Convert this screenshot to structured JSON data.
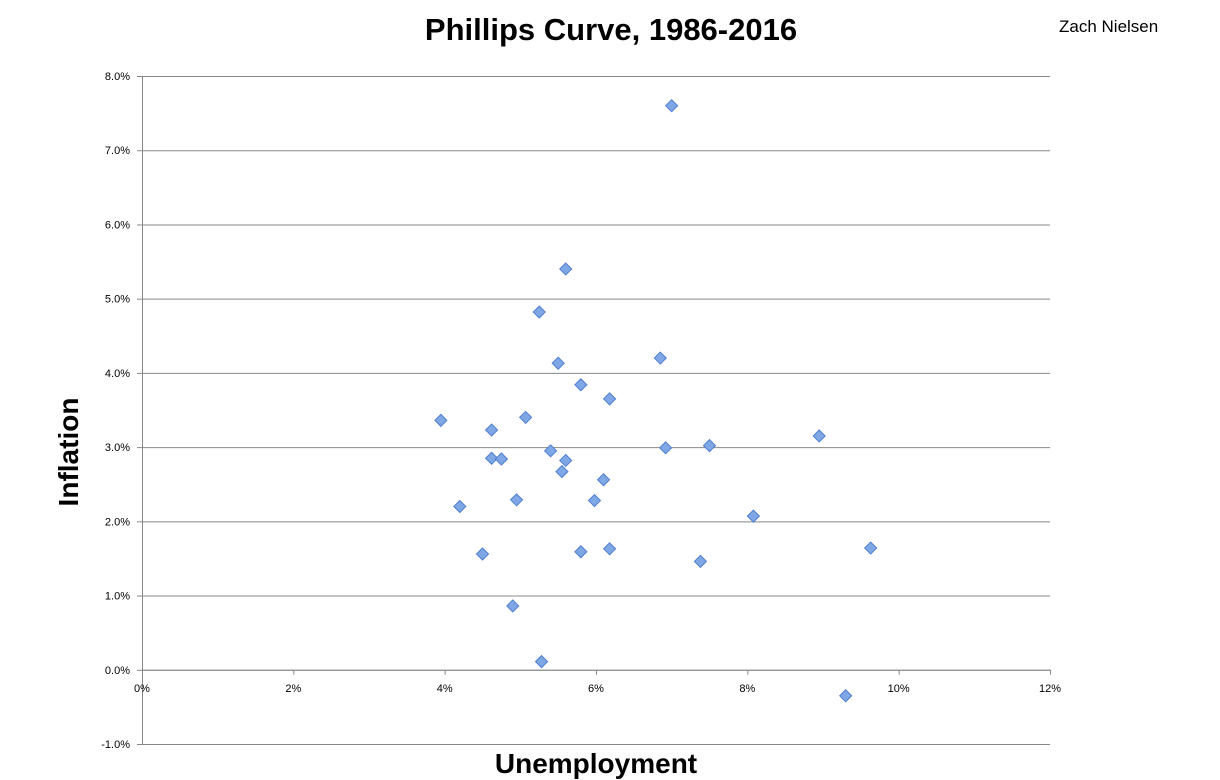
{
  "chart_data": {
    "type": "scatter",
    "title": "Phillips Curve, 1986-2016",
    "author": "Zach Nielsen",
    "xlabel": "Unemployment",
    "ylabel": "Inflation",
    "xlim": [
      0,
      12
    ],
    "ylim": [
      -1,
      8
    ],
    "x_ticks": [
      0,
      2,
      4,
      6,
      8,
      10,
      12
    ],
    "x_tick_labels": [
      "0%",
      "2%",
      "4%",
      "6%",
      "8%",
      "10%",
      "12%"
    ],
    "y_ticks": [
      -1,
      0,
      1,
      2,
      3,
      4,
      5,
      6,
      7,
      8
    ],
    "y_tick_labels": [
      "-1.0%",
      "0.0%",
      "1.0%",
      "2.0%",
      "3.0%",
      "4.0%",
      "5.0%",
      "6.0%",
      "7.0%",
      "8.0%"
    ],
    "grid": "horizontal",
    "legend": "none",
    "marker": "diamond",
    "marker_color": "#7fa7e6",
    "marker_edge_color": "#4f7fcf",
    "points": [
      {
        "x": 7.0,
        "y": 7.6
      },
      {
        "x": 5.6,
        "y": 5.4
      },
      {
        "x": 5.25,
        "y": 4.82
      },
      {
        "x": 5.5,
        "y": 4.13
      },
      {
        "x": 6.85,
        "y": 4.2
      },
      {
        "x": 5.8,
        "y": 3.84
      },
      {
        "x": 6.18,
        "y": 3.65
      },
      {
        "x": 3.95,
        "y": 3.36
      },
      {
        "x": 5.07,
        "y": 3.4
      },
      {
        "x": 4.62,
        "y": 3.23
      },
      {
        "x": 8.95,
        "y": 3.15
      },
      {
        "x": 7.5,
        "y": 3.02
      },
      {
        "x": 6.92,
        "y": 2.99
      },
      {
        "x": 5.4,
        "y": 2.95
      },
      {
        "x": 4.62,
        "y": 2.85
      },
      {
        "x": 4.75,
        "y": 2.84
      },
      {
        "x": 5.6,
        "y": 2.82
      },
      {
        "x": 5.55,
        "y": 2.67
      },
      {
        "x": 6.1,
        "y": 2.56
      },
      {
        "x": 4.95,
        "y": 2.29
      },
      {
        "x": 5.98,
        "y": 2.28
      },
      {
        "x": 4.2,
        "y": 2.2
      },
      {
        "x": 8.08,
        "y": 2.07
      },
      {
        "x": 9.63,
        "y": 1.64
      },
      {
        "x": 6.18,
        "y": 1.63
      },
      {
        "x": 5.8,
        "y": 1.59
      },
      {
        "x": 4.5,
        "y": 1.56
      },
      {
        "x": 7.38,
        "y": 1.46
      },
      {
        "x": 4.9,
        "y": 0.86
      },
      {
        "x": 5.28,
        "y": 0.11
      },
      {
        "x": 9.3,
        "y": -0.35
      }
    ]
  },
  "colors": {
    "background": "#ffffff",
    "gridline": "#888888",
    "axis": "#888888",
    "text": "#000000"
  }
}
